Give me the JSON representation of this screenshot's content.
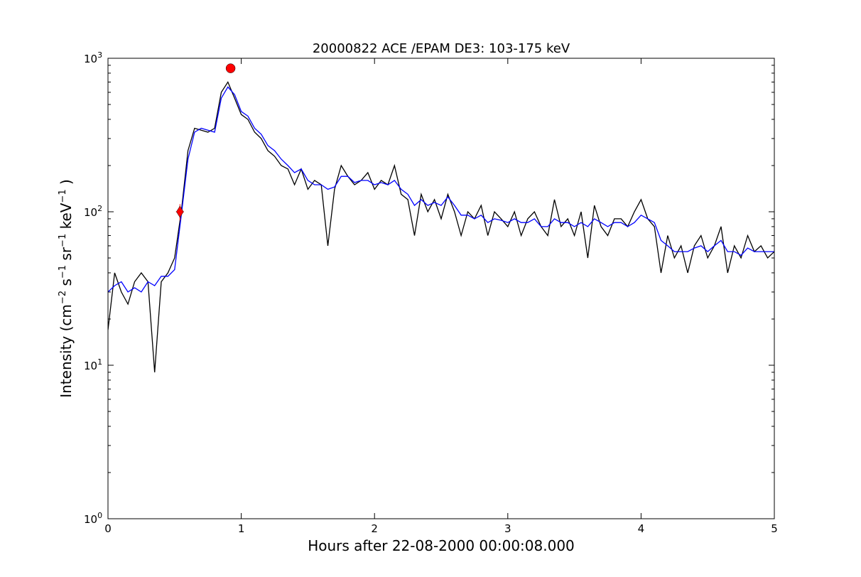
{
  "chart_data": {
    "type": "line",
    "title": "20000822 ACE /EPAM DE3: 103-175 keV",
    "xlabel": "Hours after 22-08-2000 00:00:08.000",
    "ylabel": [
      "Intensity (cm",
      "−2",
      " s",
      "−1",
      " sr",
      "−1",
      " keV",
      "−1",
      " )"
    ],
    "xlim": [
      0,
      5
    ],
    "xticks": [
      0,
      1,
      2,
      3,
      4,
      5
    ],
    "ylim": [
      1,
      1000
    ],
    "log_y": true,
    "yticks": [
      {
        "value": 1,
        "label": "10",
        "exponent": "0"
      },
      {
        "value": 10,
        "label": "10",
        "exponent": "1"
      },
      {
        "value": 100,
        "label": "10",
        "exponent": "2"
      },
      {
        "value": 1000,
        "label": "10",
        "exponent": "3"
      }
    ],
    "yminorticks": [
      2,
      3,
      4,
      5,
      6,
      7,
      8,
      9,
      20,
      30,
      40,
      50,
      60,
      70,
      80,
      90,
      200,
      300,
      400,
      500,
      600,
      700,
      800,
      900
    ],
    "x": [
      0,
      0.05,
      0.1,
      0.15,
      0.2,
      0.25,
      0.3,
      0.35,
      0.4,
      0.45,
      0.5,
      0.55,
      0.6,
      0.65,
      0.7,
      0.75,
      0.8,
      0.85,
      0.9,
      0.95,
      1,
      1.05,
      1.1,
      1.15,
      1.2,
      1.25,
      1.3,
      1.35,
      1.4,
      1.45,
      1.5,
      1.55,
      1.6,
      1.65,
      1.7,
      1.75,
      1.8,
      1.85,
      1.9,
      1.95,
      2,
      2.05,
      2.1,
      2.15,
      2.2,
      2.25,
      2.3,
      2.35,
      2.4,
      2.45,
      2.5,
      2.55,
      2.6,
      2.65,
      2.7,
      2.75,
      2.8,
      2.85,
      2.9,
      2.95,
      3,
      3.05,
      3.1,
      3.15,
      3.2,
      3.25,
      3.3,
      3.35,
      3.4,
      3.45,
      3.5,
      3.55,
      3.6,
      3.65,
      3.7,
      3.75,
      3.8,
      3.85,
      3.9,
      3.95,
      4,
      4.05,
      4.1,
      4.15,
      4.2,
      4.25,
      4.3,
      4.35,
      4.4,
      4.45,
      4.5,
      4.55,
      4.6,
      4.65,
      4.7,
      4.75,
      4.8,
      4.85,
      4.9,
      4.95,
      5
    ],
    "series": [
      {
        "color": "#000000",
        "values": [
          17,
          40,
          30,
          25,
          35,
          40,
          35,
          9,
          35,
          40,
          50,
          100,
          250,
          350,
          340,
          330,
          350,
          600,
          700,
          550,
          430,
          400,
          330,
          300,
          250,
          230,
          200,
          190,
          150,
          190,
          140,
          160,
          150,
          60,
          140,
          200,
          170,
          150,
          160,
          180,
          140,
          160,
          150,
          200,
          130,
          120,
          70,
          130,
          100,
          120,
          90,
          130,
          100,
          70,
          100,
          90,
          110,
          70,
          100,
          90,
          80,
          100,
          70,
          90,
          100,
          80,
          70,
          120,
          80,
          90,
          70,
          100,
          50,
          110,
          80,
          70,
          90,
          90,
          80,
          100,
          120,
          90,
          80,
          40,
          70,
          50,
          60,
          40,
          60,
          70,
          50,
          60,
          80,
          40,
          60,
          50,
          70,
          55,
          60,
          50,
          55
        ]
      },
      {
        "color": "#0000ff",
        "values": [
          30,
          33,
          35,
          30,
          32,
          30,
          35,
          33,
          38,
          38,
          42,
          95,
          220,
          330,
          350,
          340,
          330,
          550,
          650,
          580,
          450,
          420,
          350,
          320,
          270,
          250,
          220,
          200,
          180,
          190,
          160,
          150,
          150,
          140,
          145,
          170,
          170,
          155,
          160,
          160,
          150,
          155,
          150,
          160,
          140,
          130,
          110,
          120,
          110,
          115,
          110,
          125,
          110,
          95,
          95,
          90,
          95,
          85,
          90,
          88,
          85,
          90,
          85,
          85,
          90,
          80,
          80,
          90,
          85,
          85,
          80,
          85,
          80,
          90,
          85,
          80,
          85,
          85,
          80,
          85,
          95,
          90,
          85,
          65,
          60,
          55,
          55,
          55,
          58,
          60,
          55,
          60,
          65,
          55,
          55,
          52,
          58,
          55,
          55,
          55,
          55
        ]
      }
    ],
    "markers": [
      {
        "shape": "diamond",
        "color": "#ff0000",
        "x": 0.54,
        "y": 100,
        "yerr": 12,
        "xerr": 0.03
      },
      {
        "shape": "circle",
        "color": "#ff0000",
        "x": 0.92,
        "y": 860
      }
    ]
  }
}
